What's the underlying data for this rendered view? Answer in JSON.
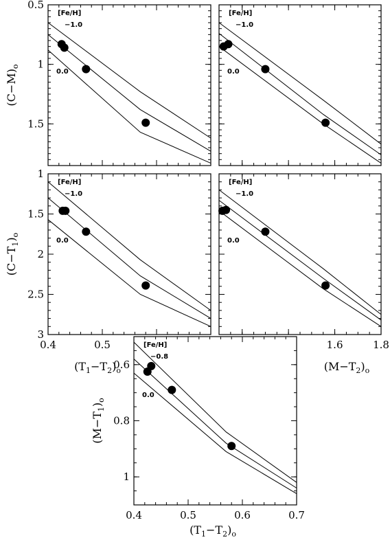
{
  "chart_data": [
    {
      "type": "scatter",
      "name": "top-left",
      "xlim": [
        0.4,
        0.7
      ],
      "ylim": [
        1.85,
        0.5
      ],
      "yticks": [
        "0.5",
        "1",
        "1.5"
      ],
      "xticks": [],
      "ylabel": "(C−M)",
      "ylabel_sub": "o",
      "xlabel": "",
      "points": [
        [
          0.425,
          0.83
        ],
        [
          0.43,
          0.86
        ],
        [
          0.47,
          1.04
        ],
        [
          0.58,
          1.49
        ]
      ],
      "isochrones": [
        {
          "label": "−1.0",
          "x": [
            0.4,
            0.57,
            0.7
          ],
          "y": [
            0.65,
            1.23,
            1.62
          ]
        },
        {
          "label": "",
          "x": [
            0.4,
            0.57,
            0.7
          ],
          "y": [
            0.75,
            1.38,
            1.73
          ]
        },
        {
          "label": "0.0",
          "x": [
            0.4,
            0.57,
            0.7
          ],
          "y": [
            0.88,
            1.57,
            1.83
          ]
        }
      ],
      "header_label": "[Fe/H]"
    },
    {
      "type": "scatter",
      "name": "top-right",
      "xlim": [
        1.1,
        1.8
      ],
      "ylim": [
        1.85,
        0.5
      ],
      "yticks": [],
      "xticks": [],
      "ylabel": "",
      "xlabel": "",
      "points": [
        [
          1.12,
          0.85
        ],
        [
          1.14,
          0.83
        ],
        [
          1.3,
          1.04
        ],
        [
          1.56,
          1.49
        ]
      ],
      "isochrones": [
        {
          "label": "−1.0",
          "x": [
            1.1,
            1.55,
            1.8
          ],
          "y": [
            0.65,
            1.3,
            1.67
          ]
        },
        {
          "label": "",
          "x": [
            1.1,
            1.55,
            1.8
          ],
          "y": [
            0.74,
            1.42,
            1.76
          ]
        },
        {
          "label": "0.0",
          "x": [
            1.1,
            1.55,
            1.8
          ],
          "y": [
            0.85,
            1.5,
            1.83
          ]
        }
      ],
      "header_label": "[Fe/H]"
    },
    {
      "type": "scatter",
      "name": "middle-left",
      "xlim": [
        0.4,
        0.7
      ],
      "ylim": [
        3.0,
        1.0
      ],
      "yticks": [
        "1",
        "1.5",
        "2",
        "2.5",
        "3"
      ],
      "xticks": [
        "0.4",
        "0.5"
      ],
      "ylabel": "(C−T",
      "ylabel_sub": "1",
      "ylabel_tail": ")",
      "ylabel_sub2": "o",
      "xlabel": "(T",
      "xlabel_sub": "1",
      "xlabel_mid": "−T",
      "xlabel_sub2": "2",
      "xlabel_tail": ")",
      "xlabel_sub3": "o",
      "points": [
        [
          0.427,
          1.46
        ],
        [
          0.432,
          1.46
        ],
        [
          0.47,
          1.72
        ],
        [
          0.58,
          2.39
        ]
      ],
      "isochrones": [
        {
          "label": "−1.0",
          "x": [
            0.4,
            0.57,
            0.7
          ],
          "y": [
            1.1,
            2.07,
            2.7
          ]
        },
        {
          "label": "",
          "x": [
            0.4,
            0.57,
            0.7
          ],
          "y": [
            1.3,
            2.27,
            2.8
          ]
        },
        {
          "label": "0.0",
          "x": [
            0.4,
            0.57,
            0.7
          ],
          "y": [
            1.57,
            2.5,
            2.9
          ]
        }
      ],
      "header_label": "[Fe/H]"
    },
    {
      "type": "scatter",
      "name": "middle-right",
      "xlim": [
        1.1,
        1.8
      ],
      "ylim": [
        3.0,
        1.0
      ],
      "yticks": [],
      "xticks": [
        "1.6",
        "1.8"
      ],
      "ylabel": "",
      "xlabel": "(M−T",
      "xlabel_sub": "2",
      "xlabel_tail": ")",
      "xlabel_sub3": "o",
      "points": [
        [
          1.115,
          1.46
        ],
        [
          1.13,
          1.45
        ],
        [
          1.3,
          1.72
        ],
        [
          1.56,
          2.39
        ]
      ],
      "isochrones": [
        {
          "label": "−1.0",
          "x": [
            1.1,
            1.55,
            1.8
          ],
          "y": [
            1.2,
            2.18,
            2.75
          ]
        },
        {
          "label": "",
          "x": [
            1.1,
            1.55,
            1.8
          ],
          "y": [
            1.33,
            2.3,
            2.82
          ]
        },
        {
          "label": "0.0",
          "x": [
            1.1,
            1.55,
            1.8
          ],
          "y": [
            1.46,
            2.43,
            2.9
          ]
        }
      ],
      "header_label": "[Fe/H]"
    },
    {
      "type": "scatter",
      "name": "bottom",
      "xlim": [
        0.4,
        0.7
      ],
      "ylim": [
        1.1,
        0.5
      ],
      "yticks": [
        "0.6",
        "0.8",
        "1"
      ],
      "xticks": [
        "0.4",
        "0.5",
        "0.6",
        "0.7"
      ],
      "ylabel": "(M−T",
      "ylabel_sub": "1",
      "ylabel_tail": ")",
      "ylabel_sub2": "o",
      "xlabel": "(T",
      "xlabel_sub": "1",
      "xlabel_mid": "−T",
      "xlabel_sub2": "2",
      "xlabel_tail": ")",
      "xlabel_sub3": "o",
      "points": [
        [
          0.425,
          0.625
        ],
        [
          0.432,
          0.605
        ],
        [
          0.47,
          0.69
        ],
        [
          0.58,
          0.89
        ]
      ],
      "isochrones": [
        {
          "label": "−0.8",
          "x": [
            0.4,
            0.57,
            0.7
          ],
          "y": [
            0.52,
            0.84,
            1.02
          ]
        },
        {
          "label": "",
          "x": [
            0.4,
            0.57,
            0.7
          ],
          "y": [
            0.58,
            0.88,
            1.04
          ]
        },
        {
          "label": "0.0",
          "x": [
            0.4,
            0.57,
            0.7
          ],
          "y": [
            0.63,
            0.91,
            1.06
          ]
        }
      ],
      "header_label": "[Fe/H]"
    }
  ]
}
